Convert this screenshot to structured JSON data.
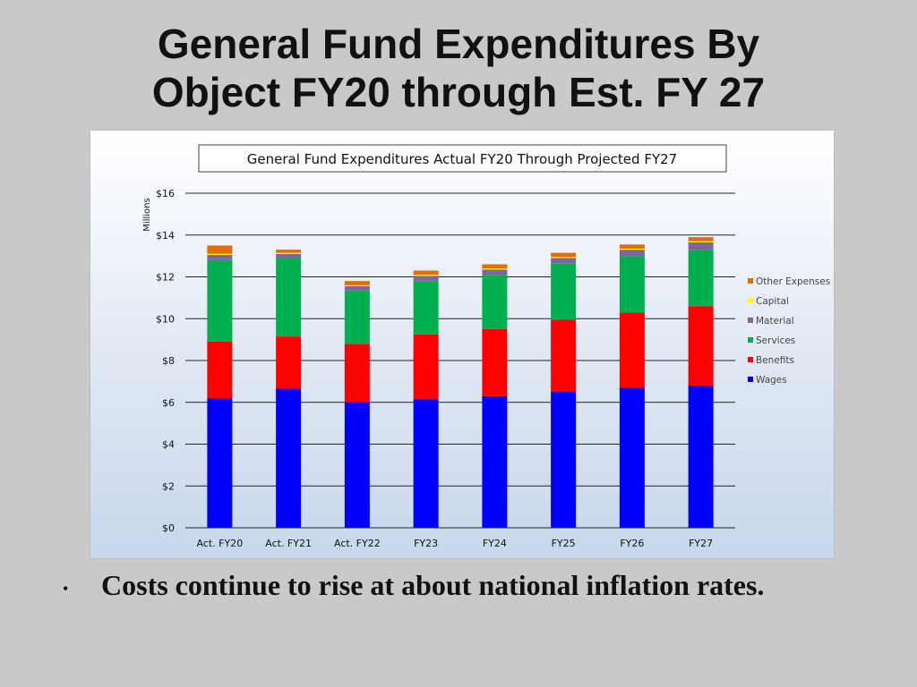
{
  "slide": {
    "title_line1": "General Fund Expenditures By",
    "title_line2": "Object FY20 through Est. FY 27",
    "bullet": "Costs continue to rise at about national inflation rates."
  },
  "chart_data": {
    "type": "bar",
    "stacked": true,
    "title": "General Fund Expenditures Actual FY20 Through Projected FY27",
    "ylabel": "Millions",
    "xlabel": "",
    "ylim": [
      0,
      16
    ],
    "yticks": [
      0,
      2,
      4,
      6,
      8,
      10,
      12,
      14,
      16
    ],
    "ytick_labels": [
      "$0",
      "$2",
      "$4",
      "$6",
      "$8",
      "$10",
      "$12",
      "$14",
      "$16"
    ],
    "grid": true,
    "legend_position": "right",
    "categories": [
      "Act. FY20",
      "Act. FY21",
      "Act.  FY22",
      "FY23",
      "FY24",
      "FY25",
      "FY26",
      "FY27"
    ],
    "series": [
      {
        "name": "Wages",
        "color": "#0000ff",
        "values": [
          6.2,
          6.65,
          6.0,
          6.15,
          6.3,
          6.5,
          6.7,
          6.8
        ]
      },
      {
        "name": "Benefits",
        "color": "#ff0000",
        "values": [
          2.7,
          2.5,
          2.8,
          3.1,
          3.2,
          3.45,
          3.6,
          3.8
        ]
      },
      {
        "name": "Services",
        "color": "#00b050",
        "values": [
          3.9,
          3.75,
          2.55,
          2.55,
          2.6,
          2.7,
          2.7,
          2.7
        ]
      },
      {
        "name": "Material",
        "color": "#8064a2",
        "values": [
          0.25,
          0.2,
          0.2,
          0.25,
          0.25,
          0.25,
          0.3,
          0.35
        ]
      },
      {
        "name": "Capital",
        "color": "#ffff00",
        "values": [
          0.05,
          0.05,
          0.05,
          0.05,
          0.05,
          0.05,
          0.05,
          0.05
        ]
      },
      {
        "name": "Other Expenses",
        "color": "#e36c09",
        "values": [
          0.4,
          0.15,
          0.2,
          0.2,
          0.2,
          0.2,
          0.2,
          0.2
        ]
      }
    ],
    "legend_order": [
      "Other Expenses",
      "Capital",
      "Material",
      "Services",
      "Benefits",
      "Wages"
    ]
  }
}
